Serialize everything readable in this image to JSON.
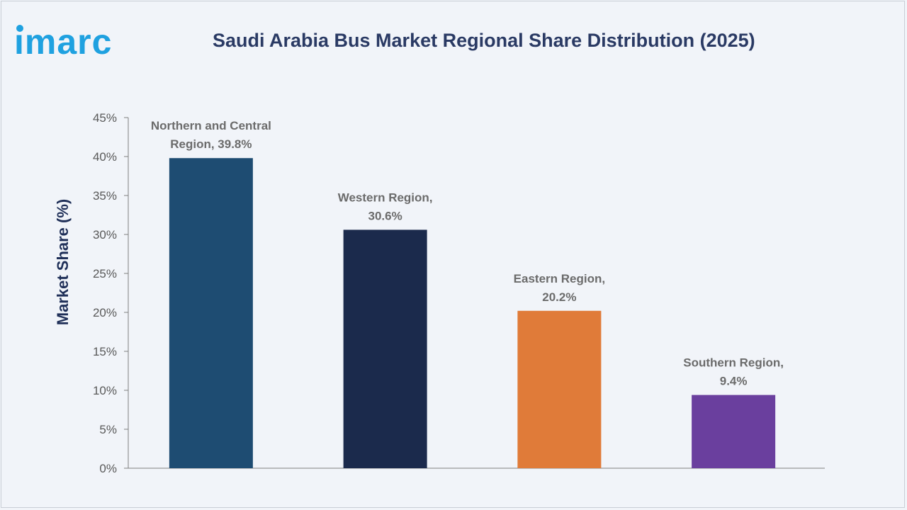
{
  "brand": {
    "name": "imarc"
  },
  "colors": {
    "background": "#f1f4f9",
    "title": "#2a3a64",
    "axis": "#7f7f7f",
    "tick_text": "#595959",
    "label_text": "#6b6b6b",
    "logo_blue": "#1fa1e0",
    "logo_dot": "#1fa1e0"
  },
  "chart_data": {
    "type": "bar",
    "title": "Saudi Arabia Bus Market Regional Share Distribution (2025)",
    "xlabel": "",
    "ylabel": "Market Share (%)",
    "ylim": [
      0,
      45
    ],
    "yticks": [
      "0%",
      "5%",
      "10%",
      "15%",
      "20%",
      "25%",
      "30%",
      "35%",
      "40%",
      "45%"
    ],
    "grid": false,
    "legend": "none",
    "categories": [
      "Northern and Central Region",
      "Western Region",
      "Eastern Region",
      "Southern Region"
    ],
    "values": [
      39.8,
      30.6,
      20.2,
      9.4
    ],
    "bar_colors": [
      "#1e4c72",
      "#1b2a4c",
      "#e07b39",
      "#6a3f9e"
    ],
    "data_labels": [
      [
        "Northern and Central",
        "Region, 39.8%"
      ],
      [
        "Western Region,",
        "30.6%"
      ],
      [
        "Eastern Region,",
        "20.2%"
      ],
      [
        "Southern Region,",
        "9.4%"
      ]
    ]
  }
}
